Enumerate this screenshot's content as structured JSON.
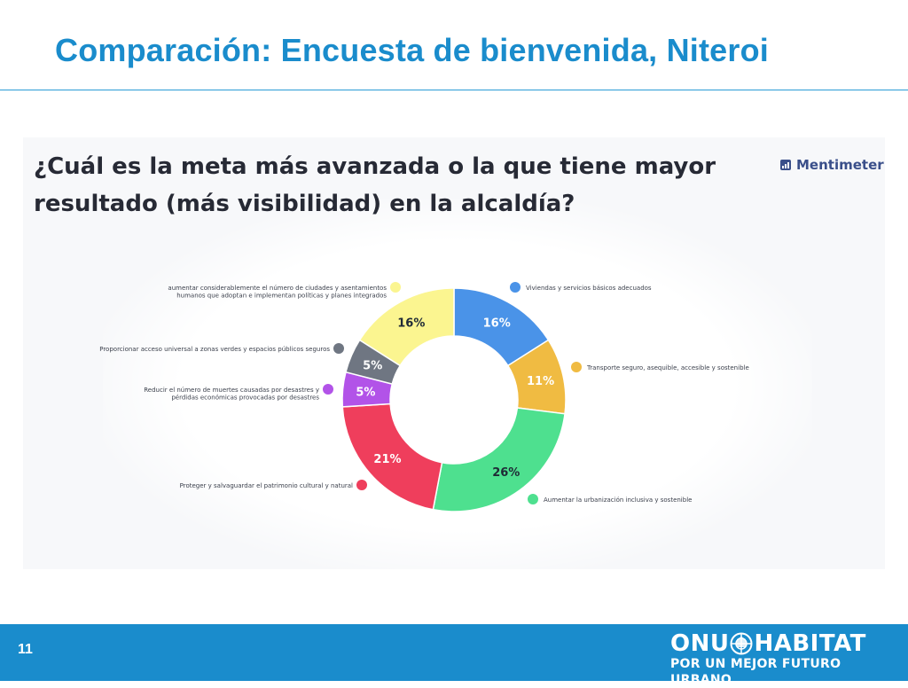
{
  "slide": {
    "title": "Comparación: Encuesta de bienvenida, Niteroi",
    "page_number": "11"
  },
  "menti": {
    "question": "¿Cuál es la meta más avanzada o la que tiene mayor resultado (más visibilidad) en la alcaldía?",
    "brand": "Mentimeter"
  },
  "footer": {
    "logo_left": "ONU",
    "logo_right": "HABITAT",
    "tagline": "POR UN MEJOR FUTURO URBANO"
  },
  "colors": {
    "title_blue": "#1a8ccc",
    "footer_blue": "#1a8ccc"
  },
  "chart_data": {
    "type": "pie",
    "donut": true,
    "slices": [
      {
        "label": "Viviendas y servicios básicos adecuados",
        "value": 16,
        "display": "16%",
        "color": "#4a93e8",
        "label_color": "#ffffff"
      },
      {
        "label": "Transporte seguro, asequible, accesible y sostenible",
        "value": 11,
        "display": "11%",
        "color": "#f0bb42",
        "label_color": "#ffffff"
      },
      {
        "label": "Aumentar la urbanización inclusiva y sostenible",
        "value": 26,
        "display": "26%",
        "color": "#4ee08f",
        "label_color": "#1f2a36"
      },
      {
        "label": "Proteger y salvaguardar el patrimonio cultural y natural",
        "value": 21,
        "display": "21%",
        "color": "#ef3e5c",
        "label_color": "#ffffff"
      },
      {
        "label": "Reducir el número de muertes causadas por desastres y pérdidas económicas provocadas por desastres",
        "value": 5,
        "display": "5%",
        "color": "#b253e8",
        "label_color": "#ffffff"
      },
      {
        "label": "Proporcionar acceso universal a zonas verdes y espacios públicos seguros",
        "value": 5,
        "display": "5%",
        "color": "#6f7682",
        "label_color": "#ffffff"
      },
      {
        "label": "aumentar considerablemente el número de ciudades y asentamientos humanos que adoptan e implementan políticas y planes integrados",
        "value": 16,
        "display": "16%",
        "color": "#fbf590",
        "label_color": "#1f2a36"
      }
    ]
  }
}
